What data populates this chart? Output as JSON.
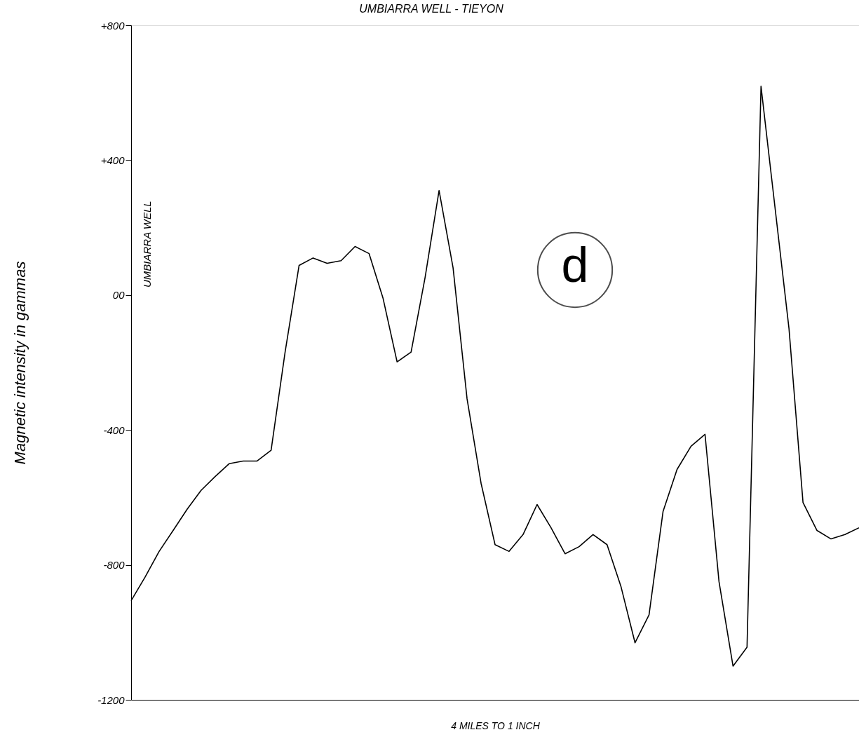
{
  "chart_data": {
    "type": "line",
    "title": "UMBIARRA WELL - TIEYON",
    "xlabel": "4 MILES TO 1 INCH",
    "ylabel": "Magnetic intensity in gammas",
    "categories": [
      null,
      null,
      null,
      null,
      null,
      null,
      null,
      null,
      null,
      null,
      null,
      null,
      null,
      null,
      null,
      null,
      null,
      null,
      null,
      null,
      null,
      null,
      null,
      null,
      null,
      null,
      null,
      null,
      null,
      null,
      null,
      null,
      null,
      null,
      null,
      null,
      null,
      null,
      null,
      null,
      null,
      null,
      null,
      null,
      null,
      null,
      null,
      null,
      null,
      null,
      null,
      null,
      null
    ],
    "series": [
      {
        "color": "#000000",
        "values": [
          -906,
          -836,
          -760,
          -698,
          -635,
          -579,
          -538,
          -500,
          -492,
          -492,
          -460,
          -169,
          88,
          110,
          94,
          102,
          144,
          123,
          -10,
          -198,
          -169,
          52,
          310,
          81,
          -308,
          -558,
          -740,
          -760,
          -710,
          -621,
          -690,
          -767,
          -746,
          -710,
          -740,
          -865,
          -1031,
          -948,
          -642,
          -517,
          -448,
          -413,
          -850,
          -1100,
          -1044,
          619,
          null,
          -100,
          -615,
          -698,
          -723,
          -710,
          -690
        ]
      }
    ],
    "ylim": [
      -1200,
      800
    ],
    "yticks": [
      {
        "value": 800,
        "label": "+800"
      },
      {
        "value": 400,
        "label": "+400"
      },
      {
        "value": 0,
        "label": "00"
      },
      {
        "value": -400,
        "label": "-400"
      },
      {
        "value": -800,
        "label": "-800"
      },
      {
        "value": -1200,
        "label": "-1200"
      }
    ],
    "annotations": [
      "UMBIARRA WELL",
      "d"
    ],
    "grid": false,
    "marker": "none",
    "line_style": "solid"
  }
}
